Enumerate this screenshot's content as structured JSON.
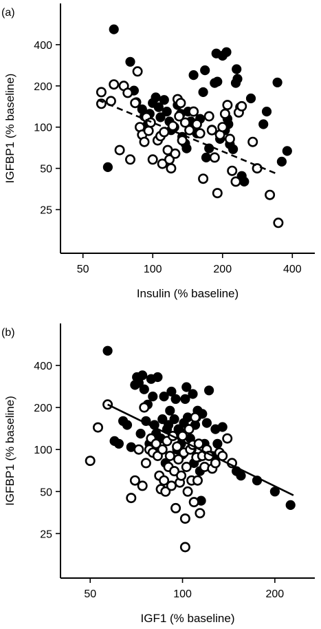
{
  "chart_data": [
    {
      "type": "scatter",
      "panel_label": "(a)",
      "xlabel": "Insulin (% baseline)",
      "ylabel": "IGFBP1 (% baseline)",
      "x_scale": "log",
      "y_scale": "log",
      "xlim": [
        40,
        500
      ],
      "ylim": [
        12,
        800
      ],
      "x_ticks": [
        50,
        100,
        200,
        400
      ],
      "y_ticks": [
        25,
        50,
        100,
        200,
        400
      ],
      "grid": false,
      "series": [
        {
          "marker": "filled-circle",
          "fill": "#000000",
          "points": [
            [
              68,
              518
            ],
            [
              64,
              51
            ],
            [
              80,
              300
            ],
            [
              83,
              185
            ],
            [
              85,
              152
            ],
            [
              90,
              135
            ],
            [
              92,
              120
            ],
            [
              94,
              102
            ],
            [
              97,
              125
            ],
            [
              100,
              150
            ],
            [
              103,
              165
            ],
            [
              106,
              140
            ],
            [
              108,
              118
            ],
            [
              112,
              158
            ],
            [
              115,
              130
            ],
            [
              118,
              110
            ],
            [
              120,
              95
            ],
            [
              124,
              100
            ],
            [
              128,
              145
            ],
            [
              132,
              125
            ],
            [
              134,
              85
            ],
            [
              138,
              76
            ],
            [
              140,
              70
            ],
            [
              142,
              130
            ],
            [
              146,
              110
            ],
            [
              150,
              240
            ],
            [
              155,
              90
            ],
            [
              160,
              115
            ],
            [
              165,
              180
            ],
            [
              168,
              260
            ],
            [
              170,
              60
            ],
            [
              175,
              70
            ],
            [
              180,
              96
            ],
            [
              185,
              210
            ],
            [
              188,
              345
            ],
            [
              190,
              215
            ],
            [
              195,
              82
            ],
            [
              200,
              332
            ],
            [
              205,
              95
            ],
            [
              208,
              353
            ],
            [
              210,
              115
            ],
            [
              212,
              105
            ],
            [
              215,
              75
            ],
            [
              222,
              69
            ],
            [
              228,
              210
            ],
            [
              230,
              265
            ],
            [
              232,
              225
            ],
            [
              238,
              140
            ],
            [
              242,
              44
            ],
            [
              248,
              40
            ],
            [
              265,
              162
            ],
            [
              300,
              105
            ],
            [
              310,
              130
            ],
            [
              345,
              212
            ],
            [
              360,
              56
            ],
            [
              380,
              67
            ]
          ]
        },
        {
          "marker": "open-circle",
          "fill": "#ffffff",
          "points": [
            [
              60,
              180
            ],
            [
              60,
              148
            ],
            [
              66,
              155
            ],
            [
              68,
              205
            ],
            [
              72,
              68
            ],
            [
              75,
              200
            ],
            [
              78,
              178
            ],
            [
              80,
              58
            ],
            [
              84,
              150
            ],
            [
              86,
              255
            ],
            [
              88,
              100
            ],
            [
              90,
              88
            ],
            [
              92,
              78
            ],
            [
              94,
              118
            ],
            [
              96,
              94
            ],
            [
              98,
              108
            ],
            [
              100,
              58
            ],
            [
              105,
              80
            ],
            [
              108,
              86
            ],
            [
              110,
              54
            ],
            [
              112,
              92
            ],
            [
              116,
              68
            ],
            [
              118,
              58
            ],
            [
              120,
              50
            ],
            [
              122,
              102
            ],
            [
              125,
              64
            ],
            [
              128,
              160
            ],
            [
              130,
              120
            ],
            [
              132,
              150
            ],
            [
              134,
              80
            ],
            [
              138,
              108
            ],
            [
              144,
              95
            ],
            [
              150,
              130
            ],
            [
              155,
              105
            ],
            [
              160,
              90
            ],
            [
              165,
              42
            ],
            [
              175,
              120
            ],
            [
              180,
              95
            ],
            [
              185,
              60
            ],
            [
              190,
              33
            ],
            [
              195,
              88
            ],
            [
              200,
              100
            ],
            [
              205,
              125
            ],
            [
              210,
              145
            ],
            [
              215,
              82
            ],
            [
              220,
              48
            ],
            [
              228,
              40
            ],
            [
              235,
              128
            ],
            [
              242,
              142
            ],
            [
              270,
              78
            ],
            [
              282,
              50
            ],
            [
              320,
              32
            ],
            [
              348,
              20
            ]
          ]
        }
      ],
      "fit_line": {
        "style": "dashed",
        "x": [
          58,
          350
        ],
        "y": [
          158,
          45
        ]
      }
    },
    {
      "type": "scatter",
      "panel_label": "(b)",
      "xlabel": "IGF1 (% baseline)",
      "ylabel": "IGFBP1 (% baseline)",
      "x_scale": "log",
      "y_scale": "log",
      "xlim": [
        40,
        270
      ],
      "ylim": [
        12,
        800
      ],
      "x_ticks": [
        50,
        100,
        200
      ],
      "y_ticks": [
        25,
        50,
        100,
        200,
        400
      ],
      "grid": false,
      "series": [
        {
          "marker": "filled-circle",
          "fill": "#000000",
          "points": [
            [
              57,
              510
            ],
            [
              60,
              115
            ],
            [
              62,
              110
            ],
            [
              64,
              160
            ],
            [
              66,
              150
            ],
            [
              68,
              104
            ],
            [
              70,
              290
            ],
            [
              71,
              330
            ],
            [
              72,
              300
            ],
            [
              73,
              130
            ],
            [
              74,
              340
            ],
            [
              75,
              270
            ],
            [
              76,
              160
            ],
            [
              77,
              210
            ],
            [
              78,
              110
            ],
            [
              79,
              320
            ],
            [
              80,
              240
            ],
            [
              81,
              150
            ],
            [
              82,
              130
            ],
            [
              83,
              330
            ],
            [
              84,
              100
            ],
            [
              85,
              120
            ],
            [
              86,
              165
            ],
            [
              87,
              240
            ],
            [
              88,
              80
            ],
            [
              89,
              140
            ],
            [
              90,
              150
            ],
            [
              91,
              190
            ],
            [
              92,
              260
            ],
            [
              93,
              125
            ],
            [
              94,
              165
            ],
            [
              95,
              230
            ],
            [
              96,
              100
            ],
            [
              97,
              140
            ],
            [
              98,
              135
            ],
            [
              99,
              110
            ],
            [
              100,
              92
            ],
            [
              101,
              155
            ],
            [
              102,
              230
            ],
            [
              103,
              280
            ],
            [
              104,
              170
            ],
            [
              105,
              140
            ],
            [
              106,
              120
            ],
            [
              107,
              100
            ],
            [
              108,
              250
            ],
            [
              109,
              80
            ],
            [
              110,
              150
            ],
            [
              111,
              170
            ],
            [
              112,
              190
            ],
            [
              113,
              88
            ],
            [
              114,
              70
            ],
            [
              115,
              43
            ],
            [
              116,
              180
            ],
            [
              118,
              110
            ],
            [
              120,
              155
            ],
            [
              122,
              265
            ],
            [
              125,
              90
            ],
            [
              128,
              140
            ],
            [
              130,
              110
            ],
            [
              135,
              145
            ],
            [
              140,
              120
            ],
            [
              150,
              70
            ],
            [
              155,
              65
            ],
            [
              175,
              60
            ],
            [
              200,
              50
            ],
            [
              225,
              40
            ]
          ]
        },
        {
          "marker": "open-circle",
          "fill": "#ffffff",
          "points": [
            [
              50,
              83
            ],
            [
              53,
              144
            ],
            [
              57,
              210
            ],
            [
              68,
              45
            ],
            [
              70,
              60
            ],
            [
              72,
              100
            ],
            [
              74,
              55
            ],
            [
              75,
              200
            ],
            [
              76,
              80
            ],
            [
              78,
              100
            ],
            [
              79,
              120
            ],
            [
              80,
              95
            ],
            [
              82,
              110
            ],
            [
              83,
              90
            ],
            [
              84,
              65
            ],
            [
              85,
              52
            ],
            [
              86,
              100
            ],
            [
              87,
              60
            ],
            [
              88,
              50
            ],
            [
              89,
              115
            ],
            [
              90,
              75
            ],
            [
              91,
              90
            ],
            [
              92,
              55
            ],
            [
              93,
              125
            ],
            [
              94,
              70
            ],
            [
              95,
              38
            ],
            [
              96,
              105
            ],
            [
              97,
              85
            ],
            [
              98,
              58
            ],
            [
              99,
              65
            ],
            [
              100,
              125
            ],
            [
              101,
              95
            ],
            [
              102,
              32
            ],
            [
              103,
              75
            ],
            [
              104,
              50
            ],
            [
              105,
              140
            ],
            [
              106,
              100
            ],
            [
              107,
              60
            ],
            [
              108,
              108
            ],
            [
              109,
              42
            ],
            [
              110,
              170
            ],
            [
              111,
              88
            ],
            [
              112,
              60
            ],
            [
              113,
              110
            ],
            [
              114,
              35
            ],
            [
              116,
              90
            ],
            [
              118,
              75
            ],
            [
              120,
              100
            ],
            [
              122,
              90
            ],
            [
              125,
              73
            ],
            [
              128,
              80
            ],
            [
              132,
              95
            ],
            [
              135,
              90
            ],
            [
              140,
              120
            ],
            [
              145,
              80
            ],
            [
              102,
              20
            ]
          ]
        }
      ],
      "fit_line": {
        "style": "solid",
        "x": [
          57,
          230
        ],
        "y": [
          210,
          47
        ]
      }
    }
  ]
}
